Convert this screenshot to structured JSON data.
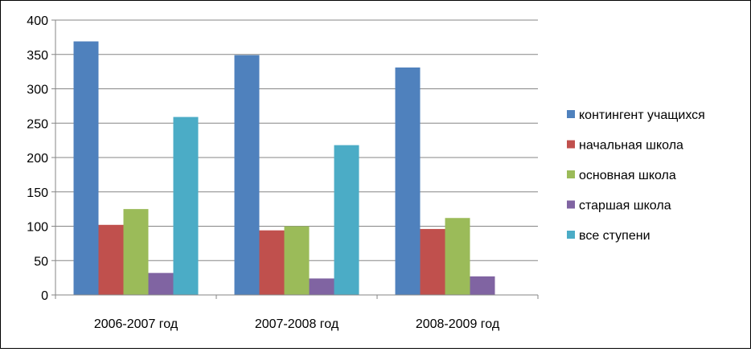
{
  "chart_data": {
    "type": "bar",
    "categories": [
      "2006-2007 год",
      "2007-2008 год",
      "2008-2009 год"
    ],
    "series": [
      {
        "name": "контингент учащихся",
        "color": "#4F81BD",
        "values": [
          369,
          349,
          331
        ]
      },
      {
        "name": "начальная школа",
        "color": "#C0504D",
        "values": [
          102,
          94,
          96
        ]
      },
      {
        "name": "основная школа",
        "color": "#9BBB59",
        "values": [
          125,
          100,
          112
        ]
      },
      {
        "name": "старшая школа",
        "color": "#8064A2",
        "values": [
          32,
          24,
          27
        ]
      },
      {
        "name": "все ступени",
        "color": "#4BACC6",
        "values": [
          259,
          218,
          null
        ]
      }
    ],
    "ylim": [
      0,
      400
    ],
    "yticks": [
      0,
      50,
      100,
      150,
      200,
      250,
      300,
      350,
      400
    ],
    "grid": true,
    "legend_position": "right"
  }
}
